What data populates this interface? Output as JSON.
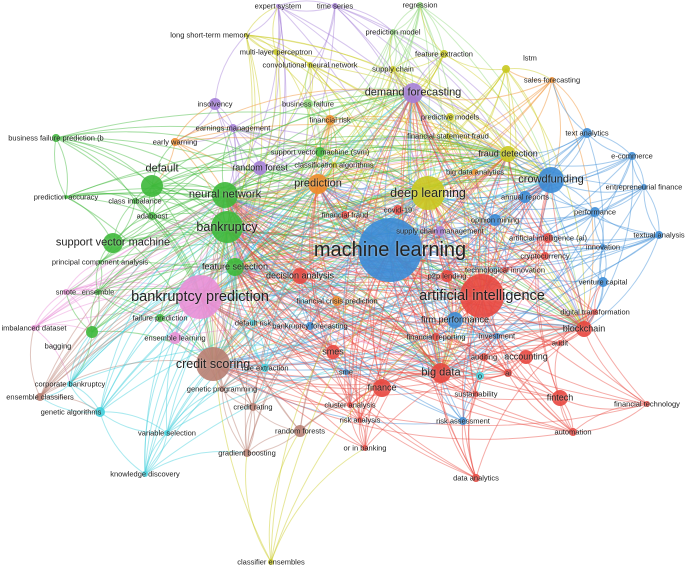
{
  "clusters": {
    "red": "#e8463e",
    "blue": "#3a8bd6",
    "green": "#3db83a",
    "yellow": "#c9c920",
    "purple": "#a57fd8",
    "orange": "#ef8b28",
    "pink": "#e88fd6",
    "cyan": "#3fcfdb",
    "brown": "#b87f72",
    "lightgreen": "#8fd67a"
  },
  "nodes": [
    {
      "label": "expert system",
      "cluster": "purple"
    },
    {
      "label": "time series",
      "cluster": "purple"
    },
    {
      "label": "regression",
      "cluster": "lightgreen"
    },
    {
      "label": "long short-term memory",
      "cluster": "yellow"
    },
    {
      "label": "prediction model",
      "cluster": "lightgreen"
    },
    {
      "label": "multi-layer perceptron",
      "cluster": "yellow"
    },
    {
      "label": "convolutional neural network",
      "cluster": "yellow"
    },
    {
      "label": "feature extraction",
      "cluster": "yellow"
    },
    {
      "label": "lstm",
      "cluster": "yellow"
    },
    {
      "label": "supply chain",
      "cluster": "yellow"
    },
    {
      "label": "sales forecasting",
      "cluster": "orange"
    },
    {
      "label": "demand forecasting",
      "cluster": "purple"
    },
    {
      "label": "insolvency",
      "cluster": "purple"
    },
    {
      "label": "business failure",
      "cluster": "lightgreen"
    },
    {
      "label": "financial risk",
      "cluster": "orange"
    },
    {
      "label": "predictive models",
      "cluster": "yellow"
    },
    {
      "label": "business failure prediction (b",
      "cluster": "green"
    },
    {
      "label": "earnings management",
      "cluster": "purple"
    },
    {
      "label": "early warning",
      "cluster": "orange"
    },
    {
      "label": "financial statement fraud",
      "cluster": "yellow"
    },
    {
      "label": "text analytics",
      "cluster": "blue"
    },
    {
      "label": "support vector machine (svm)",
      "cluster": "green"
    },
    {
      "label": "fraud detection",
      "cluster": "yellow"
    },
    {
      "label": "e-commerce",
      "cluster": "blue"
    },
    {
      "label": "random forest",
      "cluster": "purple"
    },
    {
      "label": "classification algorithms",
      "cluster": "yellow"
    },
    {
      "label": "default",
      "cluster": "green"
    },
    {
      "label": "big data analytics",
      "cluster": "orange"
    },
    {
      "label": "crowdfunding",
      "cluster": "blue"
    },
    {
      "label": "prediction",
      "cluster": "orange"
    },
    {
      "label": "entrepreneurial finance",
      "cluster": "blue"
    },
    {
      "label": "deep learning",
      "cluster": "yellow"
    },
    {
      "label": "prediction accuracy",
      "cluster": "green"
    },
    {
      "label": "neural network",
      "cluster": "green"
    },
    {
      "label": "class imbalance",
      "cluster": "green"
    },
    {
      "label": "annual reports",
      "cluster": "blue"
    },
    {
      "label": "adaboost",
      "cluster": "green"
    },
    {
      "label": "covid-19",
      "cluster": "red"
    },
    {
      "label": "financial fraud",
      "cluster": "red"
    },
    {
      "label": "opinion mining",
      "cluster": "blue"
    },
    {
      "label": "performance",
      "cluster": "blue"
    },
    {
      "label": "bankruptcy",
      "cluster": "green"
    },
    {
      "label": "supply chain management",
      "cluster": "purple"
    },
    {
      "label": "support vector machine",
      "cluster": "green"
    },
    {
      "label": "textual analysis",
      "cluster": "blue"
    },
    {
      "label": "machine learning",
      "cluster": "blue"
    },
    {
      "label": "artificial intelligence (ai)",
      "cluster": "red"
    },
    {
      "label": "innovation",
      "cluster": "blue"
    },
    {
      "label": "cryptocurrency",
      "cluster": "red"
    },
    {
      "label": "principal component analysis",
      "cluster": "green"
    },
    {
      "label": "technological innovation",
      "cluster": "red"
    },
    {
      "label": "feature selection",
      "cluster": "green"
    },
    {
      "label": "decision analysis",
      "cluster": "red"
    },
    {
      "label": "p2p lending",
      "cluster": "red"
    },
    {
      "label": "venture capital",
      "cluster": "blue"
    },
    {
      "label": "artificial intelligence",
      "cluster": "red"
    },
    {
      "label": "bankruptcy prediction",
      "cluster": "pink"
    },
    {
      "label": "smote",
      "cluster": "pink"
    },
    {
      "label": "ensemble",
      "cluster": "green"
    },
    {
      "label": "financial crisis prediction",
      "cluster": "orange"
    },
    {
      "label": "imbalanced dataset",
      "cluster": "pink"
    },
    {
      "label": "failure prediction",
      "cluster": "green"
    },
    {
      "label": "digital transformation",
      "cluster": "red"
    },
    {
      "label": "default risk",
      "cluster": "cyan"
    },
    {
      "label": "bankruptcy forecasting",
      "cluster": "blue"
    },
    {
      "label": "firm performance",
      "cluster": "blue"
    },
    {
      "label": "blockchain",
      "cluster": "red"
    },
    {
      "label": "bagging",
      "cluster": "green"
    },
    {
      "label": "ensemble learning",
      "cluster": "pink"
    },
    {
      "label": "financial reporting",
      "cluster": "red"
    },
    {
      "label": "investment",
      "cluster": "blue"
    },
    {
      "label": "audit",
      "cluster": "red"
    },
    {
      "label": "smes",
      "cluster": "red"
    },
    {
      "label": "credit scoring",
      "cluster": "brown"
    },
    {
      "label": "auditing",
      "cluster": "red"
    },
    {
      "label": "accounting",
      "cluster": "red"
    },
    {
      "label": "rule extraction",
      "cluster": "cyan"
    },
    {
      "label": "big data",
      "cluster": "red"
    },
    {
      "label": "sme",
      "cluster": "blue"
    },
    {
      "label": "o",
      "cluster": "cyan"
    },
    {
      "label": "ai",
      "cluster": "red"
    },
    {
      "label": "corporate bankruptcy",
      "cluster": "cyan"
    },
    {
      "label": "genetic programming",
      "cluster": "brown"
    },
    {
      "label": "finance",
      "cluster": "red"
    },
    {
      "label": "sustainability",
      "cluster": "red"
    },
    {
      "label": "fintech",
      "cluster": "red"
    },
    {
      "label": "ensemble classifiers",
      "cluster": "brown"
    },
    {
      "label": "genetic algorithms",
      "cluster": "cyan"
    },
    {
      "label": "cluster analysis",
      "cluster": "red"
    },
    {
      "label": "credit rating",
      "cluster": "brown"
    },
    {
      "label": "financial technology",
      "cluster": "red"
    },
    {
      "label": "risk analysis",
      "cluster": "red"
    },
    {
      "label": "risk assessment",
      "cluster": "blue"
    },
    {
      "label": "variable selection",
      "cluster": "cyan"
    },
    {
      "label": "random forests",
      "cluster": "brown"
    },
    {
      "label": "automation",
      "cluster": "red"
    },
    {
      "label": "gradient boosting",
      "cluster": "brown"
    },
    {
      "label": "or in banking",
      "cluster": "red"
    },
    {
      "label": "knowledge discovery",
      "cluster": "cyan"
    },
    {
      "label": "data analytics",
      "cluster": "red"
    },
    {
      "label": "classifier ensembles",
      "cluster": "yellow"
    }
  ]
}
